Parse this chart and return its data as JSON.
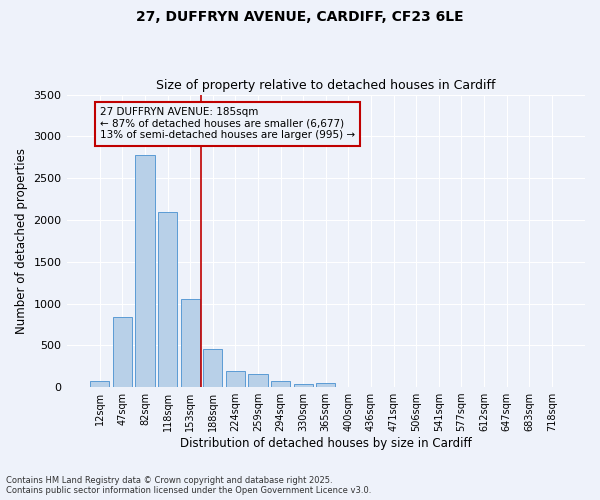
{
  "title_line1": "27, DUFFRYN AVENUE, CARDIFF, CF23 6LE",
  "title_line2": "Size of property relative to detached houses in Cardiff",
  "xlabel": "Distribution of detached houses by size in Cardiff",
  "ylabel": "Number of detached properties",
  "categories": [
    "12sqm",
    "47sqm",
    "82sqm",
    "118sqm",
    "153sqm",
    "188sqm",
    "224sqm",
    "259sqm",
    "294sqm",
    "330sqm",
    "365sqm",
    "400sqm",
    "436sqm",
    "471sqm",
    "506sqm",
    "541sqm",
    "577sqm",
    "612sqm",
    "647sqm",
    "683sqm",
    "718sqm"
  ],
  "values": [
    70,
    840,
    2780,
    2100,
    1050,
    460,
    195,
    155,
    75,
    40,
    50,
    0,
    0,
    0,
    0,
    0,
    0,
    0,
    0,
    0,
    0
  ],
  "bar_color": "#b8d0e8",
  "bar_edge_color": "#5b9bd5",
  "vline_x_idx": 5,
  "vline_color": "#c00000",
  "annotation_text": "27 DUFFRYN AVENUE: 185sqm\n← 87% of detached houses are smaller (6,677)\n13% of semi-detached houses are larger (995) →",
  "annotation_box_color": "#c00000",
  "ylim": [
    0,
    3500
  ],
  "yticks": [
    0,
    500,
    1000,
    1500,
    2000,
    2500,
    3000,
    3500
  ],
  "background_color": "#eef2fa",
  "grid_color": "#ffffff",
  "footer_line1": "Contains HM Land Registry data © Crown copyright and database right 2025.",
  "footer_line2": "Contains public sector information licensed under the Open Government Licence v3.0."
}
